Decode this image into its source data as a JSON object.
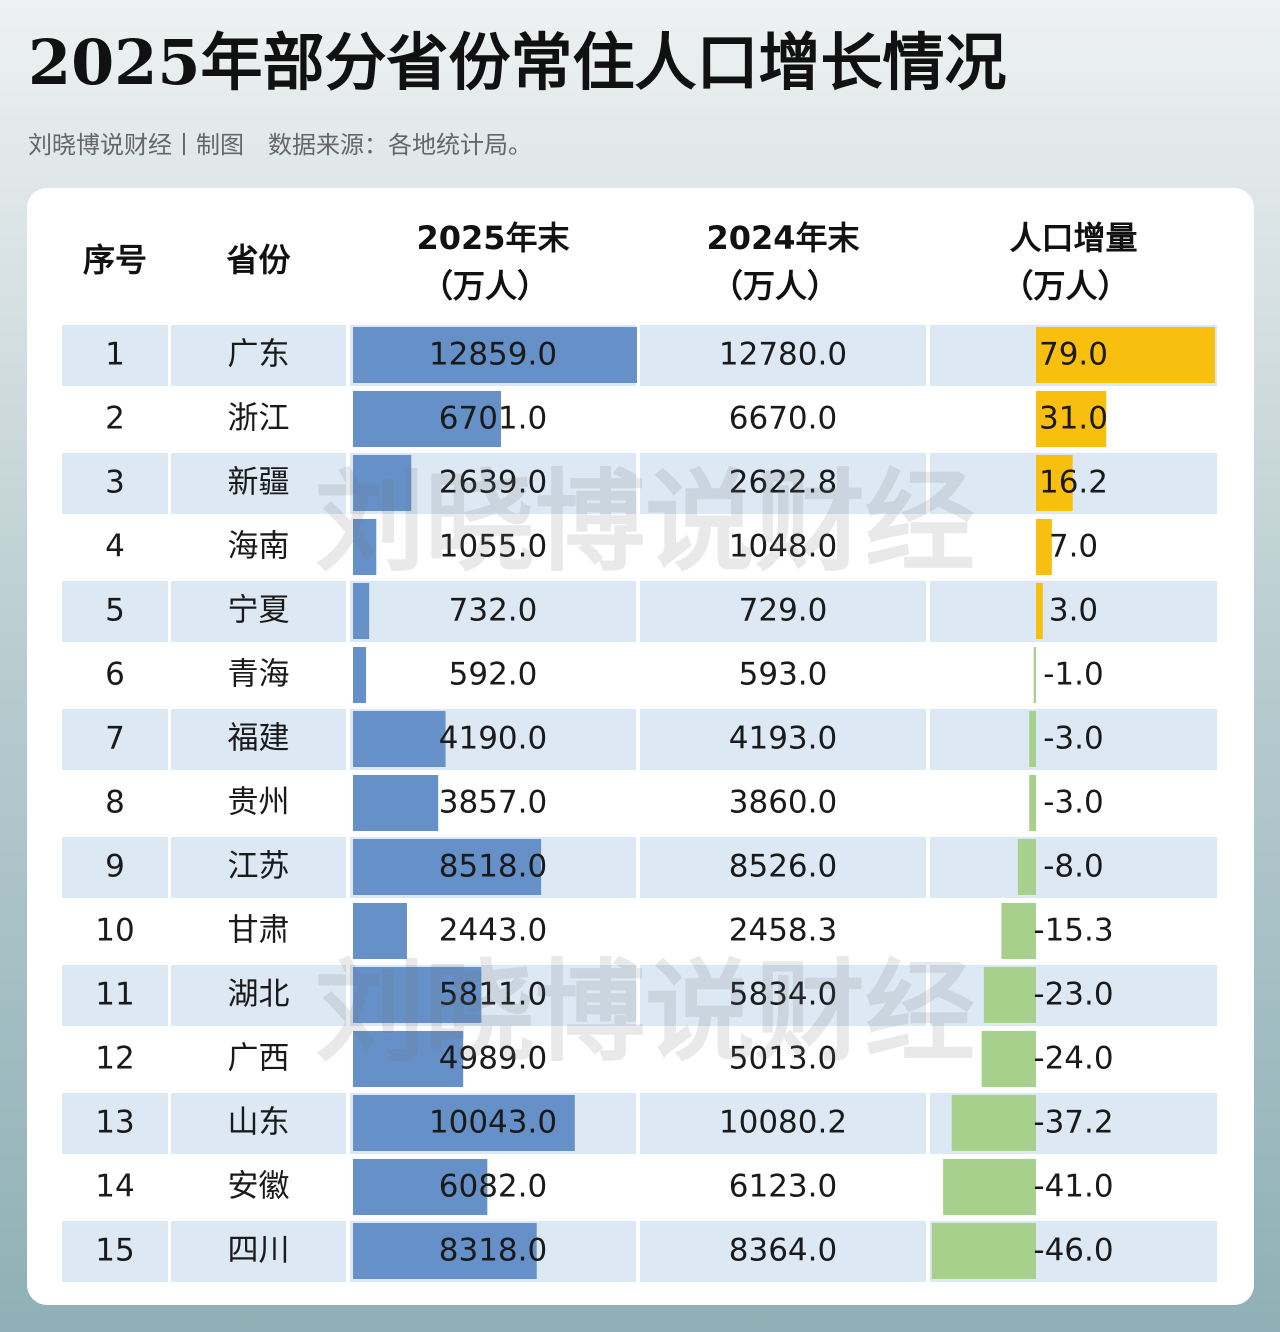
{
  "header": {
    "title": "2025年部分省份常住人口增长情况",
    "subtitle": "刘晓博说财经丨制图　数据来源：各地统计局。"
  },
  "table": {
    "columns": [
      {
        "title": "序号"
      },
      {
        "title": "省份"
      },
      {
        "title": "2025年末",
        "unit": "（万人）"
      },
      {
        "title": "2024年末",
        "unit": "（万人）"
      },
      {
        "title": "人口增量",
        "unit": "（万人）"
      }
    ],
    "rows": [
      [
        "1",
        "广东",
        "12859.0",
        "12780.0",
        "79.0"
      ],
      [
        "2",
        "浙江",
        "6701.0",
        "6670.0",
        "31.0"
      ],
      [
        "3",
        "新疆",
        "2639.0",
        "2622.8",
        "16.2"
      ],
      [
        "4",
        "海南",
        "1055.0",
        "1048.0",
        "7.0"
      ],
      [
        "5",
        "宁夏",
        "732.0",
        "729.0",
        "3.0"
      ],
      [
        "6",
        "青海",
        "592.0",
        "593.0",
        "-1.0"
      ],
      [
        "7",
        "福建",
        "4190.0",
        "4193.0",
        "-3.0"
      ],
      [
        "8",
        "贵州",
        "3857.0",
        "3860.0",
        "-3.0"
      ],
      [
        "9",
        "江苏",
        "8518.0",
        "8526.0",
        "-8.0"
      ],
      [
        "10",
        "甘肃",
        "2443.0",
        "2458.3",
        "-15.3"
      ],
      [
        "11",
        "湖北",
        "5811.0",
        "5834.0",
        "-23.0"
      ],
      [
        "12",
        "广西",
        "4989.0",
        "5013.0",
        "-24.0"
      ],
      [
        "13",
        "山东",
        "10043.0",
        "10080.2",
        "-37.2"
      ],
      [
        "14",
        "安徽",
        "6082.0",
        "6123.0",
        "-41.0"
      ],
      [
        "15",
        "四川",
        "8318.0",
        "8364.0",
        "-46.0"
      ]
    ]
  },
  "watermark": [
    "刘晓博说财经",
    "刘晓博说财经"
  ]
}
